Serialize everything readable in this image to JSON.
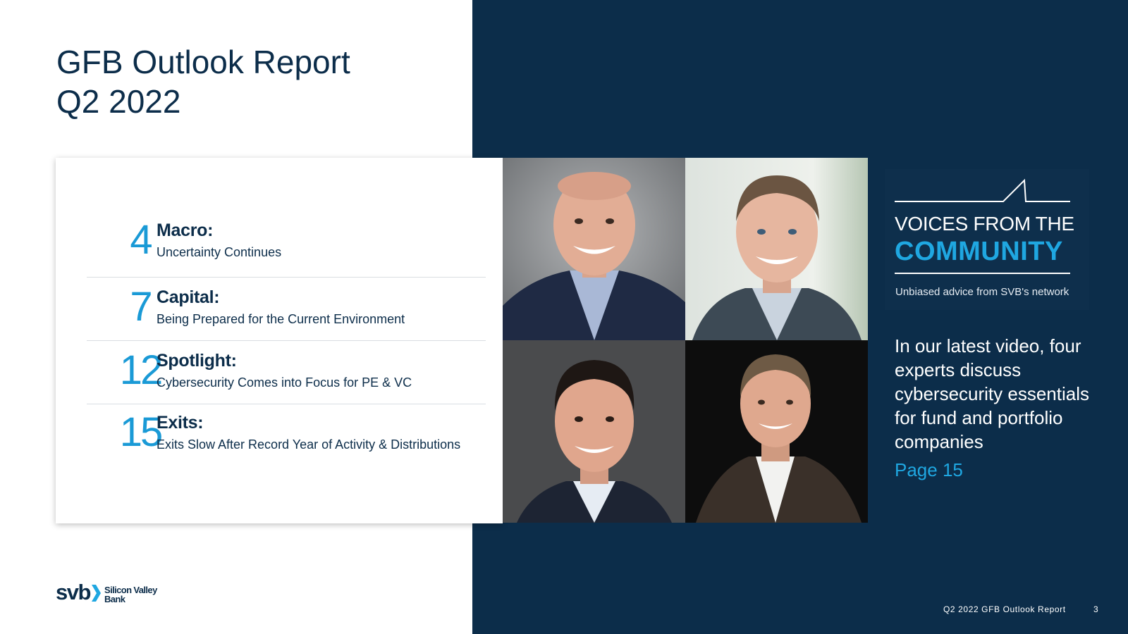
{
  "title": {
    "line1": "GFB Outlook Report",
    "line2": "Q2 2022"
  },
  "toc": {
    "entries": [
      {
        "page": "4",
        "heading": "Macro:",
        "subtitle": "Uncertainty Continues"
      },
      {
        "page": "7",
        "heading": "Capital:",
        "subtitle": "Being Prepared for the Current Environment"
      },
      {
        "page": "12",
        "heading": "Spotlight:",
        "subtitle": "Cybersecurity Comes into Focus for PE & VC"
      },
      {
        "page": "15",
        "heading": "Exits:",
        "subtitle": "Exits Slow After Record Year of Activity & Distributions"
      }
    ]
  },
  "photos": [
    {
      "icon": "portrait-icon",
      "description": "expert-1"
    },
    {
      "icon": "portrait-icon",
      "description": "expert-2"
    },
    {
      "icon": "portrait-icon",
      "description": "expert-3"
    },
    {
      "icon": "portrait-icon",
      "description": "expert-4"
    }
  ],
  "feature": {
    "line1": "VOICES FROM THE",
    "line2": "COMMUNITY",
    "tagline": "Unbiased advice from SVB's network",
    "blurb": "In our latest video, four experts discuss cybersecurity essentials for fund and portfolio companies",
    "link": "Page 15"
  },
  "logo": {
    "word": "svb",
    "bank_name": "Silicon Valley Bank"
  },
  "footer": {
    "report": "Q2 2022 GFB Outlook Report",
    "page_number": "3"
  },
  "colors": {
    "navy": "#0c2d4a",
    "accent_blue": "#1fa7e1",
    "number_blue": "#1a9ad6"
  }
}
